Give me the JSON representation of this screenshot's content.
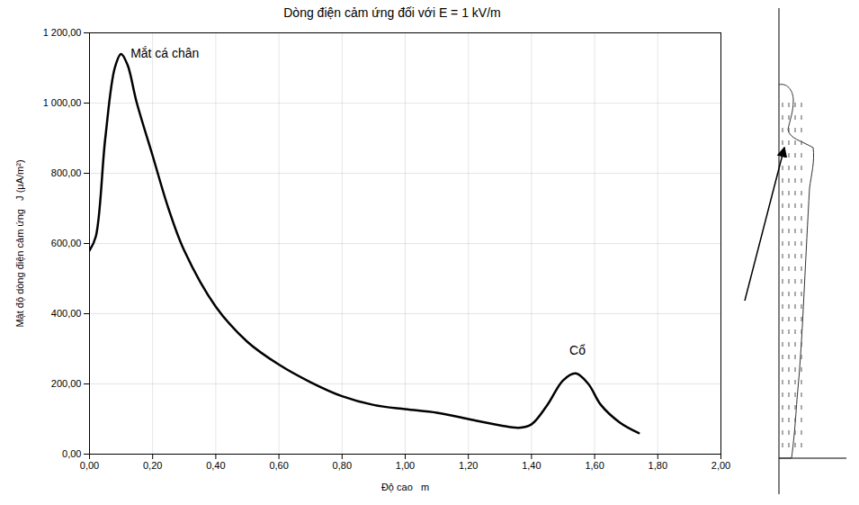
{
  "chart_data": {
    "type": "line",
    "title": "Dòng điện cảm ứng đối với E = 1 kV/m",
    "x_label": "Độ cao   m",
    "y_label": "Mật độ dòng điện cảm ứng   J (μA/m²)",
    "x": [
      0.0,
      0.02,
      0.05,
      0.08,
      0.1,
      0.12,
      0.15,
      0.2,
      0.25,
      0.3,
      0.4,
      0.5,
      0.6,
      0.7,
      0.8,
      0.9,
      1.0,
      1.1,
      1.2,
      1.3,
      1.36,
      1.4,
      1.45,
      1.5,
      1.54,
      1.58,
      1.62,
      1.68,
      1.74
    ],
    "series": [
      {
        "name": "J",
        "color": "#000000",
        "line_style": "solid",
        "values": [
          580,
          620,
          900,
          1100,
          1140,
          1110,
          1000,
          850,
          700,
          580,
          420,
          320,
          255,
          205,
          165,
          140,
          128,
          118,
          100,
          82,
          75,
          85,
          140,
          210,
          230,
          200,
          140,
          90,
          60
        ]
      }
    ],
    "annotations": [
      {
        "text": "Mắt cá chân",
        "x": 0.13,
        "y": 1135
      },
      {
        "text": "Cổ",
        "x": 1.52,
        "y": 290
      }
    ],
    "xlim": [
      0,
      2
    ],
    "ylim": [
      0,
      1200
    ],
    "xticks": [
      {
        "value": 0,
        "label": "0,00"
      },
      {
        "value": 0.2,
        "label": "0,20"
      },
      {
        "value": 0.4,
        "label": "0,40"
      },
      {
        "value": 0.6,
        "label": "0,60"
      },
      {
        "value": 0.8,
        "label": "0,80"
      },
      {
        "value": 1,
        "label": "1,00"
      },
      {
        "value": 1.2,
        "label": "1,20"
      },
      {
        "value": 1.4,
        "label": "1,40"
      },
      {
        "value": 1.6,
        "label": "1,60"
      },
      {
        "value": 1.8,
        "label": "1,80"
      },
      {
        "value": 2,
        "label": "2,00"
      }
    ],
    "yticks": [
      {
        "value": 0,
        "label": "0,00"
      },
      {
        "value": 200,
        "label": "200,00"
      },
      {
        "value": 400,
        "label": "400,00"
      },
      {
        "value": 600,
        "label": "600,00"
      },
      {
        "value": 800,
        "label": "800,00"
      },
      {
        "value": 1000,
        "label": "1 000,00"
      },
      {
        "value": 1200,
        "label": "1 200,00"
      }
    ],
    "grid": true
  }
}
